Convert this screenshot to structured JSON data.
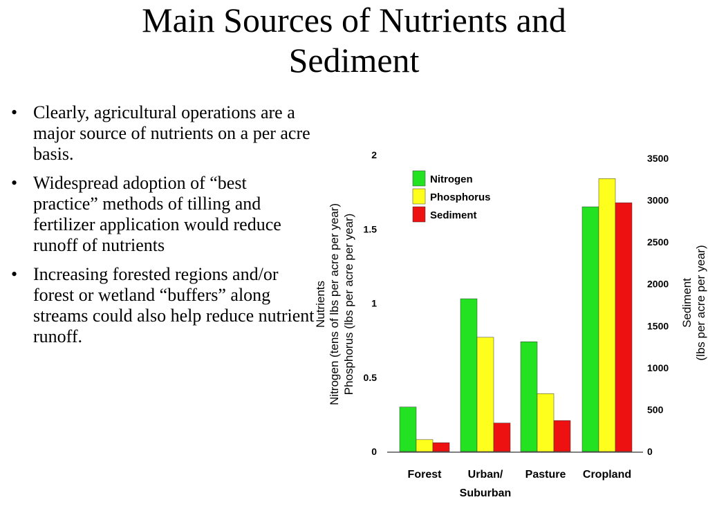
{
  "slide": {
    "title_lines": [
      "Main Sources of Nutrients and",
      "Sediment"
    ],
    "bullets": [
      "Clearly, agricultural operations are a major source of nutrients on a per acre basis.",
      "Widespread adoption of “best practice” methods of tilling and fertilizer application would reduce runoff of nutrients",
      "Increasing forested regions and/or forest or wetland “buffers” along streams could also help reduce nutrient runoff."
    ],
    "bullet_symbol": "•"
  },
  "chart_data": {
    "type": "bar",
    "categories": [
      [
        "Forest"
      ],
      [
        "Urban/",
        "Suburban"
      ],
      [
        "Pasture"
      ],
      [
        "Cropland"
      ]
    ],
    "series": [
      {
        "name": "Nitrogen",
        "axis": "left",
        "color": "#22e222",
        "values": [
          0.3,
          1.03,
          0.74,
          1.65
        ]
      },
      {
        "name": "Phosphorus",
        "axis": "left",
        "color": "#ffff1e",
        "values": [
          0.08,
          0.77,
          0.39,
          1.84
        ]
      },
      {
        "name": "Sediment",
        "axis": "right",
        "color": "#ee1111",
        "values": [
          105,
          340,
          370,
          2970
        ]
      }
    ],
    "y_left": {
      "ticks": [
        "0",
        "0.5",
        "1",
        "1.5",
        "2"
      ],
      "range": [
        0,
        2
      ],
      "title_lines": [
        "Nutrients",
        "Nitrogen (tens of lbs per acre per year)",
        "Phosphorus (lbs per acre per year)"
      ]
    },
    "y_right": {
      "ticks": [
        "0",
        "500",
        "1000",
        "1500",
        "2000",
        "2500",
        "3000",
        "3500"
      ],
      "range": [
        0,
        3500
      ],
      "title_lines": [
        "Sediment",
        "(lbs per acre per year)"
      ]
    },
    "legend_position": "top-left",
    "grid": false
  }
}
